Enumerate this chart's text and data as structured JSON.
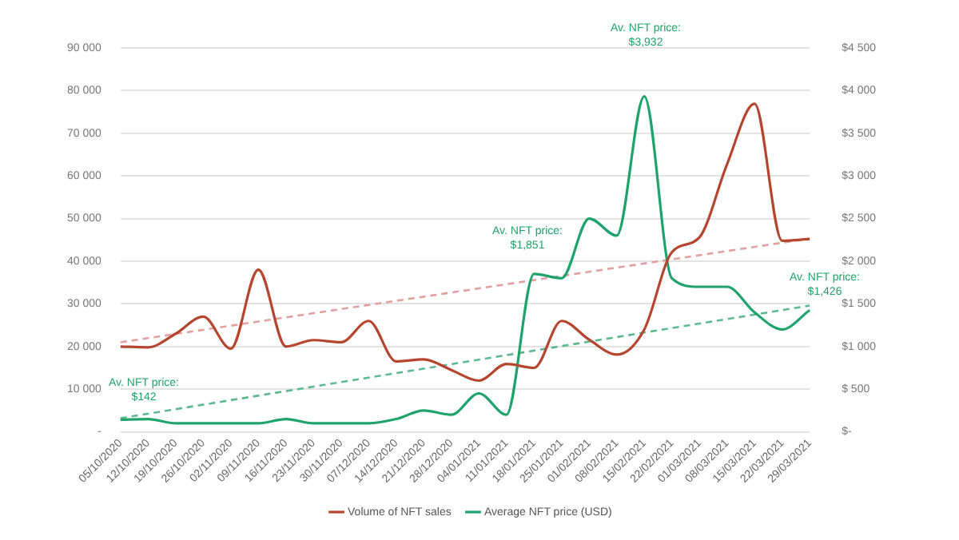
{
  "chart_data": {
    "type": "line",
    "categories": [
      "05/10/2020",
      "12/10/2020",
      "19/10/2020",
      "26/10/2020",
      "02/11/2020",
      "09/11/2020",
      "16/11/2020",
      "23/11/2020",
      "30/11/2020",
      "07/12/2020",
      "14/12/2020",
      "21/12/2020",
      "28/12/2020",
      "04/01/2021",
      "11/01/2021",
      "18/01/2021",
      "25/01/2021",
      "01/02/2021",
      "08/02/2021",
      "15/02/2021",
      "22/02/2021",
      "01/03/2021",
      "08/03/2021",
      "15/03/2021",
      "22/03/2021",
      "29/03/2021"
    ],
    "series": [
      {
        "name": "Volume of NFT sales",
        "color": "#b5452f",
        "values": [
          20000,
          19800,
          23000,
          27000,
          19500,
          38000,
          20000,
          21500,
          21000,
          26000,
          16500,
          17000,
          14500,
          12000,
          15900,
          15000,
          26000,
          21600,
          18100,
          24000,
          42100,
          45600,
          62700,
          76900,
          44800,
          45200
        ]
      },
      {
        "name": "Average NFT price (USD)",
        "color": "#1ea36b",
        "axis": "y2",
        "values": [
          142,
          150,
          100,
          100,
          100,
          100,
          150,
          100,
          100,
          100,
          150,
          250,
          200,
          450,
          200,
          1851,
          1800,
          2500,
          2300,
          3932,
          1800,
          1700,
          1700,
          1400,
          1200,
          1426
        ]
      },
      {
        "type": "line",
        "color": "#e0a0a0",
        "line_style": "dashed",
        "x": [
          "05/10/2020",
          "29/03/2021"
        ],
        "values": [
          21000,
          45300
        ]
      },
      {
        "type": "line",
        "color": "#5cb88f",
        "line_style": "dashed",
        "axis": "y2",
        "x": [
          "05/10/2020",
          "29/03/2021"
        ],
        "values": [
          160,
          1480
        ]
      }
    ],
    "ylim": [
      0,
      90000
    ],
    "yticks": [
      {
        "value": 0,
        "label": "-"
      },
      {
        "value": 10000,
        "label": "10 000"
      },
      {
        "value": 20000,
        "label": "20 000"
      },
      {
        "value": 30000,
        "label": "30 000"
      },
      {
        "value": 40000,
        "label": "40 000"
      },
      {
        "value": 50000,
        "label": "50 000"
      },
      {
        "value": 60000,
        "label": "60 000"
      },
      {
        "value": 70000,
        "label": "70 000"
      },
      {
        "value": 80000,
        "label": "80 000"
      },
      {
        "value": 90000,
        "label": "90 000"
      }
    ],
    "y2lim": [
      0,
      4500
    ],
    "y2ticks": [
      {
        "value": 0,
        "label": "$-"
      },
      {
        "value": 500,
        "label": "$ 500"
      },
      {
        "value": 1000,
        "label": "$1 000"
      },
      {
        "value": 1500,
        "label": "$1 500"
      },
      {
        "value": 2000,
        "label": "$2 000"
      },
      {
        "value": 2500,
        "label": "$2 500"
      },
      {
        "value": 3000,
        "label": "$3 000"
      },
      {
        "value": 3500,
        "label": "$3 500"
      },
      {
        "value": 4000,
        "label": "$4 000"
      },
      {
        "value": 4500,
        "label": "$4 500"
      }
    ],
    "annotations": [
      "Av. NFT price:\n$142",
      "Av. NFT price:\n$1,851",
      "Av. NFT price:\n$3,932",
      "Av. NFT price:\n$1,426"
    ],
    "grid": "y",
    "legend": "bottom",
    "marker": "none",
    "line_style": "solid"
  }
}
